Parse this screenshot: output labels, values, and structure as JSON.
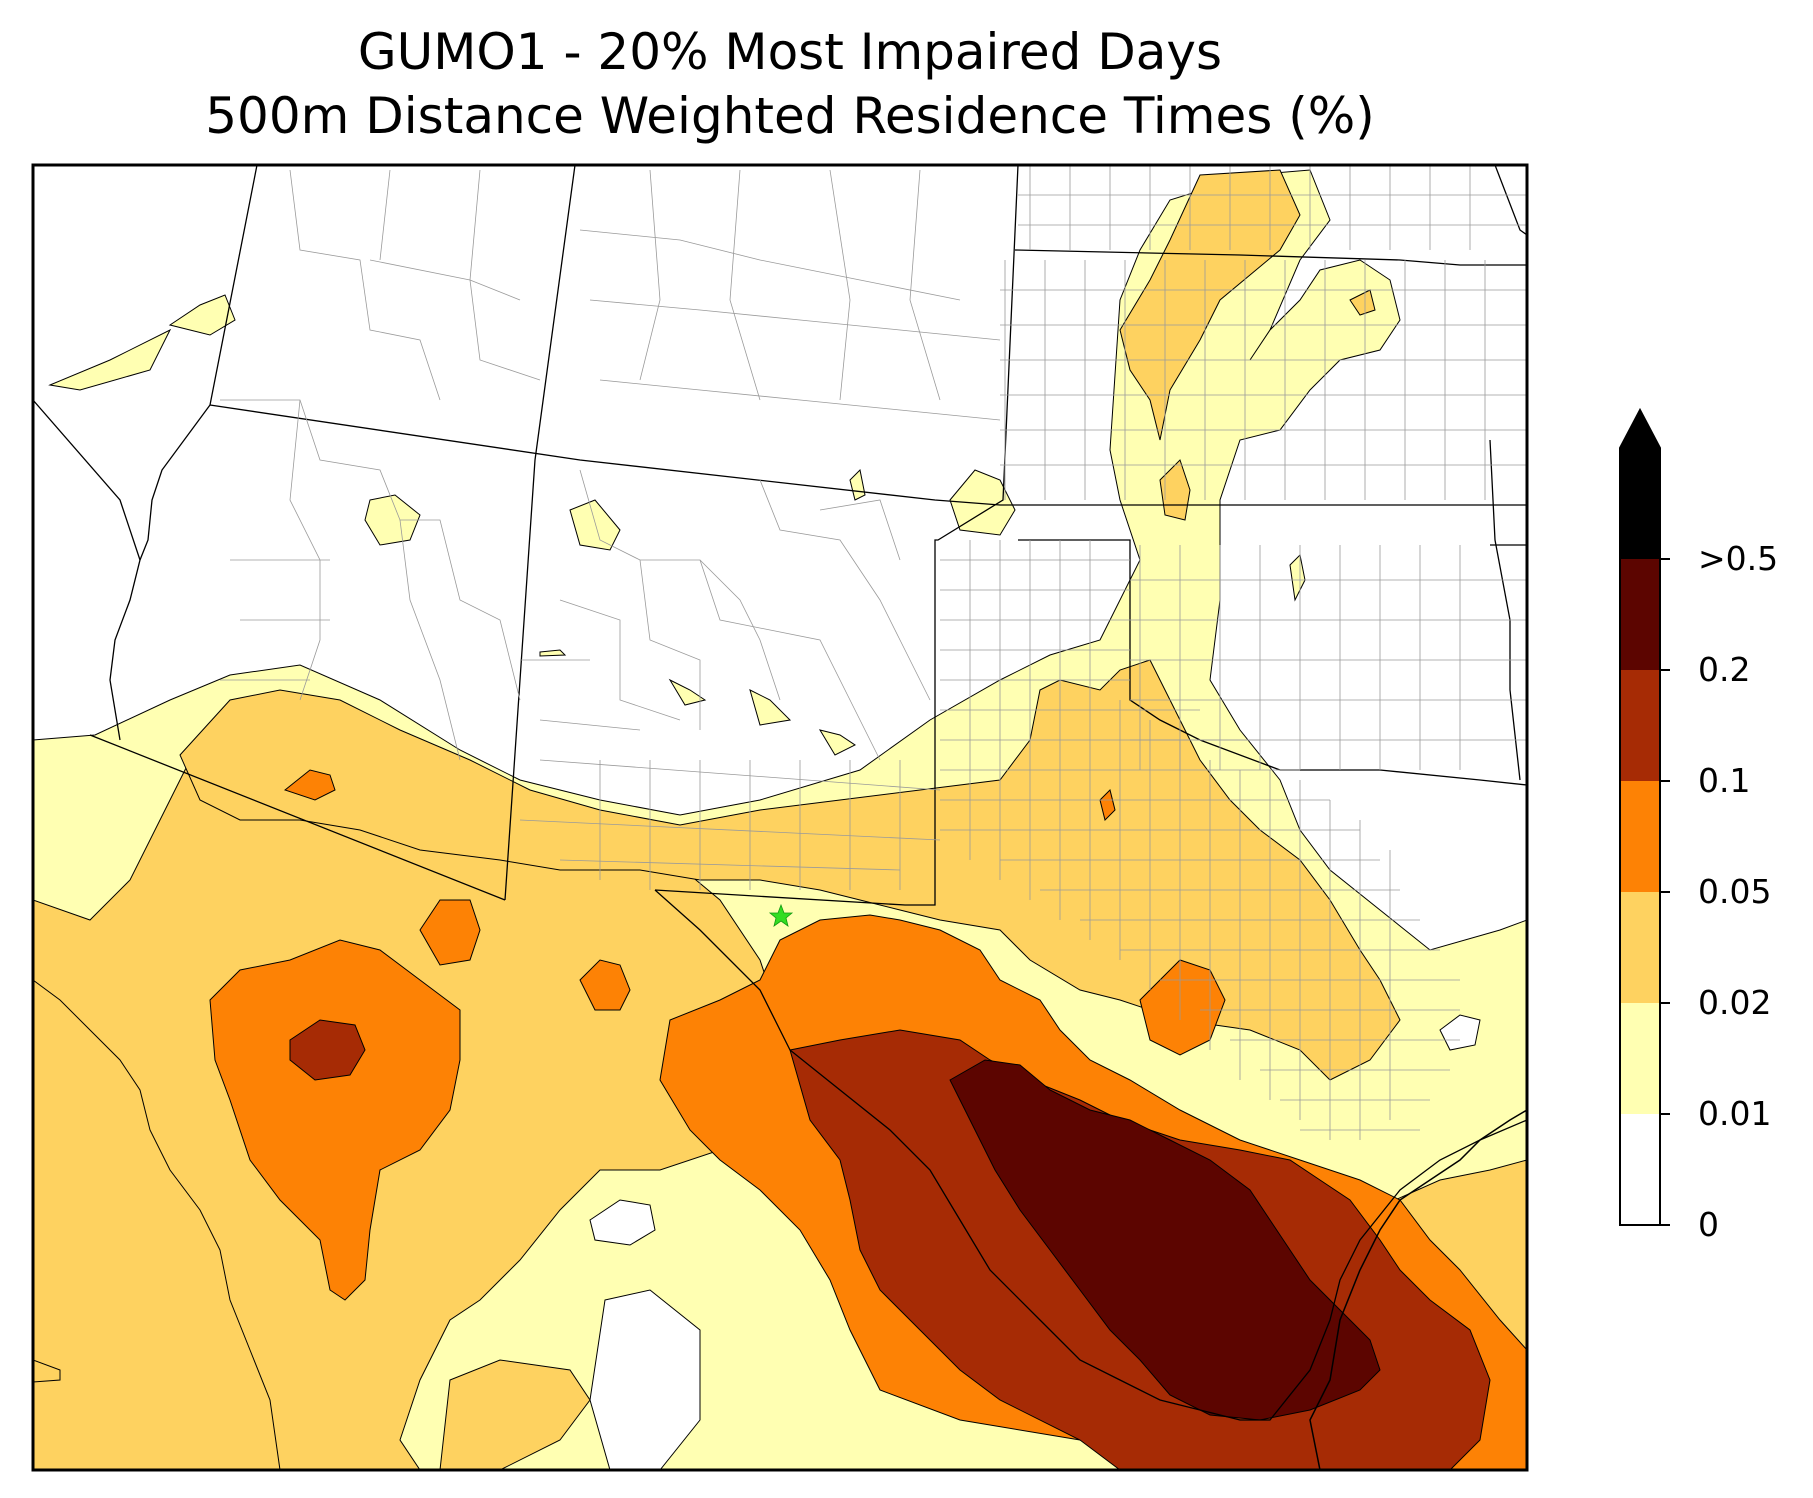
{
  "title": {
    "line1": "GUMO1 - 20% Most Impaired Days",
    "line2": "500m Distance Weighted Residence Times (%)"
  },
  "colorbar": {
    "labels": [
      "0",
      "0.01",
      "0.02",
      "0.05",
      "0.1",
      "0.2",
      ">0.5"
    ],
    "colors": [
      "#ffffff",
      "#ffffb2",
      "#fed260",
      "#fd8205",
      "#a62b05",
      "#5c0500",
      "#000000"
    ],
    "extend": "max"
  },
  "site_marker": {
    "name": "GUMO1",
    "color": "#33dd22",
    "shape": "star"
  }
}
